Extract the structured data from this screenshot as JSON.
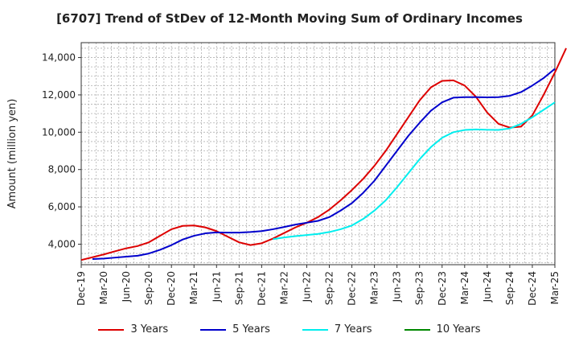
{
  "chart_data": {
    "type": "line",
    "title": "[6707]  Trend of StDev of 12-Month Moving Sum of Ordinary Incomes",
    "xlabel": "",
    "ylabel": "Amount (million yen)",
    "ylim": [
      2900,
      14800
    ],
    "yticks": [
      4000,
      6000,
      8000,
      10000,
      12000,
      14000
    ],
    "ytick_labels": [
      "4,000",
      "6,000",
      "8,000",
      "10,000",
      "12,000",
      "14,000"
    ],
    "xtick_labels": [
      "Dec-19",
      "Mar-20",
      "Jun-20",
      "Sep-20",
      "Dec-20",
      "Mar-21",
      "Jun-21",
      "Sep-21",
      "Dec-21",
      "Mar-22",
      "Jun-22",
      "Sep-22",
      "Dec-22",
      "Mar-23",
      "Jun-23",
      "Sep-23",
      "Dec-23",
      "Mar-24",
      "Jun-24",
      "Sep-24",
      "Dec-24",
      "Mar-25"
    ],
    "grid": true,
    "legend_position": "bottom",
    "series": [
      {
        "name": "3 Years",
        "color": "#dd0000",
        "points": [
          [
            0,
            3150
          ],
          [
            1,
            3300
          ],
          [
            2,
            3450
          ],
          [
            3,
            3620
          ],
          [
            4,
            3780
          ],
          [
            5,
            3900
          ],
          [
            6,
            4100
          ],
          [
            7,
            4450
          ],
          [
            8,
            4800
          ],
          [
            9,
            4980
          ],
          [
            10,
            5000
          ],
          [
            11,
            4900
          ],
          [
            12,
            4700
          ],
          [
            13,
            4400
          ],
          [
            14,
            4100
          ],
          [
            15,
            3950
          ],
          [
            16,
            4050
          ],
          [
            17,
            4300
          ],
          [
            18,
            4600
          ],
          [
            19,
            4900
          ],
          [
            20,
            5150
          ],
          [
            21,
            5450
          ],
          [
            22,
            5850
          ],
          [
            23,
            6350
          ],
          [
            24,
            6900
          ],
          [
            25,
            7500
          ],
          [
            26,
            8200
          ],
          [
            27,
            9000
          ],
          [
            28,
            9900
          ],
          [
            29,
            10800
          ],
          [
            30,
            11700
          ],
          [
            31,
            12400
          ],
          [
            32,
            12750
          ],
          [
            33,
            12780
          ],
          [
            34,
            12500
          ],
          [
            35,
            11900
          ],
          [
            36,
            11050
          ],
          [
            37,
            10450
          ],
          [
            38,
            10250
          ],
          [
            39,
            10300
          ],
          [
            40,
            10900
          ],
          [
            41,
            12000
          ],
          [
            42,
            13200
          ],
          [
            43,
            14500
          ]
        ]
      },
      {
        "name": "5 Years",
        "color": "#0000cc",
        "points": [
          [
            1,
            3200
          ],
          [
            2,
            3230
          ],
          [
            3,
            3280
          ],
          [
            4,
            3330
          ],
          [
            5,
            3380
          ],
          [
            6,
            3500
          ],
          [
            7,
            3700
          ],
          [
            8,
            3950
          ],
          [
            9,
            4250
          ],
          [
            10,
            4450
          ],
          [
            11,
            4580
          ],
          [
            12,
            4630
          ],
          [
            13,
            4620
          ],
          [
            14,
            4620
          ],
          [
            15,
            4650
          ],
          [
            16,
            4700
          ],
          [
            17,
            4800
          ],
          [
            18,
            4920
          ],
          [
            19,
            5050
          ],
          [
            20,
            5150
          ],
          [
            21,
            5250
          ],
          [
            22,
            5450
          ],
          [
            23,
            5800
          ],
          [
            24,
            6200
          ],
          [
            25,
            6750
          ],
          [
            26,
            7400
          ],
          [
            27,
            8200
          ],
          [
            28,
            9000
          ],
          [
            29,
            9800
          ],
          [
            30,
            10500
          ],
          [
            31,
            11150
          ],
          [
            32,
            11600
          ],
          [
            33,
            11850
          ],
          [
            34,
            11880
          ],
          [
            35,
            11880
          ],
          [
            36,
            11870
          ],
          [
            37,
            11880
          ],
          [
            38,
            11950
          ],
          [
            39,
            12150
          ],
          [
            40,
            12500
          ],
          [
            41,
            12900
          ],
          [
            42,
            13400
          ]
        ]
      },
      {
        "name": "7 Years",
        "color": "#00eeee",
        "points": [
          [
            17,
            4270
          ],
          [
            18,
            4360
          ],
          [
            19,
            4430
          ],
          [
            20,
            4490
          ],
          [
            21,
            4550
          ],
          [
            22,
            4650
          ],
          [
            23,
            4800
          ],
          [
            24,
            5000
          ],
          [
            25,
            5350
          ],
          [
            26,
            5800
          ],
          [
            27,
            6350
          ],
          [
            28,
            7050
          ],
          [
            29,
            7800
          ],
          [
            30,
            8550
          ],
          [
            31,
            9200
          ],
          [
            32,
            9700
          ],
          [
            33,
            10000
          ],
          [
            34,
            10120
          ],
          [
            35,
            10150
          ],
          [
            36,
            10130
          ],
          [
            37,
            10120
          ],
          [
            38,
            10200
          ],
          [
            39,
            10450
          ],
          [
            40,
            10800
          ],
          [
            41,
            11200
          ],
          [
            42,
            11600
          ]
        ]
      },
      {
        "name": "10 Years",
        "color": "#008800",
        "points": []
      }
    ]
  }
}
